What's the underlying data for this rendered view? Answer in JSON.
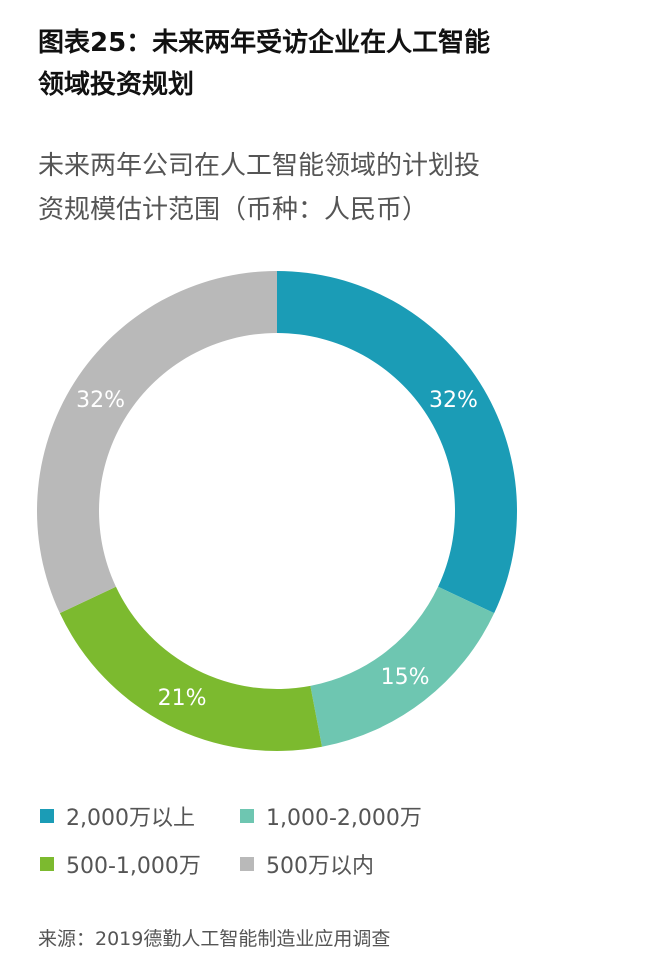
{
  "title_lines": [
    "图表25：未来两年受访企业在人工智能",
    "领域投资规划"
  ],
  "subtitle_lines": [
    "未来两年公司在人工智能领域的计划投",
    "资规模估计范围（币种：人民币）"
  ],
  "source": "来源：2019德勤人工智能制造业应用调查",
  "chart_data": {
    "type": "pie",
    "donut": true,
    "start": "top, clockwise",
    "categories": [
      "2,000万以上",
      "1,000-2,000万",
      "500-1,000万",
      "500万以内"
    ],
    "values": [
      32,
      15,
      21,
      32
    ],
    "data_labels": [
      "32%",
      "15%",
      "21%",
      "32%"
    ],
    "colors": [
      "#1b9cb6",
      "#6ec6b1",
      "#7cba2f",
      "#b9b9b9"
    ],
    "legend_placement": "bottom"
  }
}
